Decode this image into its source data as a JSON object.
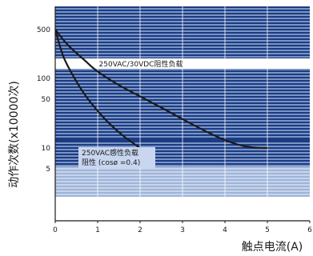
{
  "chart_data": {
    "type": "line",
    "title": "",
    "xlabel": "触点电流(A)",
    "ylabel": "动作次数(x10000次)",
    "xlim": [
      0,
      6
    ],
    "ylim": [
      1,
      1000
    ],
    "yscale": "log",
    "grid": true,
    "x_ticks": [
      "0",
      "1",
      "2",
      "3",
      "4",
      "5",
      "6"
    ],
    "y_ticks": [
      {
        "value": 500,
        "label": "500"
      },
      {
        "value": 100,
        "label": "100"
      },
      {
        "value": 50,
        "label": "50"
      },
      {
        "value": 10,
        "label": "10"
      },
      {
        "value": 5,
        "label": "5"
      }
    ],
    "series": [
      {
        "name": "250VAC/30VDC阻性负载",
        "x": [
          0,
          0.3,
          0.7,
          1.0,
          1.5,
          2.0,
          2.5,
          3.0,
          3.5,
          4.0,
          4.5,
          5.0
        ],
        "y": [
          500,
          300,
          180,
          125,
          80,
          55,
          38,
          26,
          18,
          13,
          10.5,
          10
        ]
      },
      {
        "name": "250VAC感性负载 阻性 (cosø =0.4)",
        "x": [
          0,
          0.2,
          0.5,
          0.8,
          1.2,
          1.6,
          2.0
        ],
        "y": [
          500,
          200,
          90,
          48,
          25,
          15,
          10
        ]
      }
    ],
    "annotations": [
      {
        "text": "250VAC/30VDC阻性负载"
      },
      {
        "text": "250VAC感性负载"
      },
      {
        "text": "阻性 (cosø =0.4)"
      }
    ],
    "colors": {
      "band_dark": "#1a3c85",
      "band_light": "#9fb4da",
      "band_white": "#ffffff",
      "curve": "#1a1a1a",
      "annotation_bg": "#ffffff",
      "annotation_bg_inductive": "#c8d6f0"
    }
  }
}
